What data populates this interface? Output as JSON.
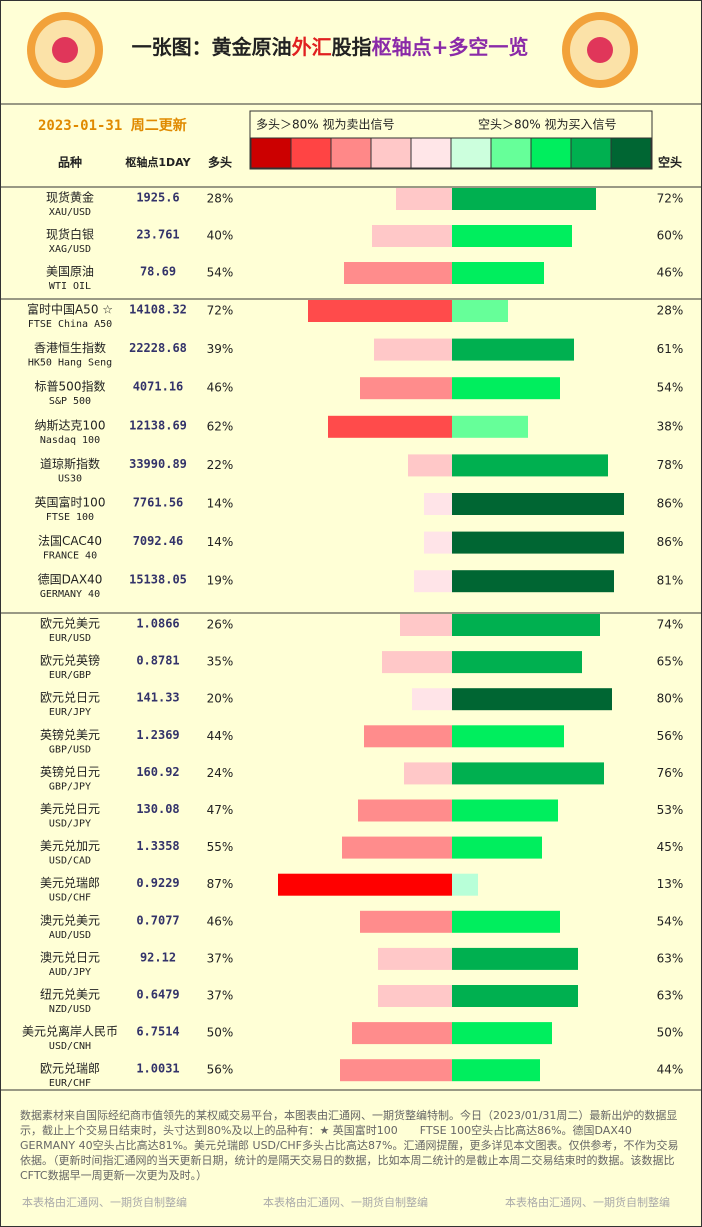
{
  "chart_data": {
    "type": "diverging-bar",
    "title_parts": [
      {
        "text": "一张图：黄金原油",
        "color": "#222222"
      },
      {
        "text": "外汇",
        "color": "#e02020"
      },
      {
        "text": "股指",
        "color": "#222222"
      },
      {
        "text": "枢轴点+多空一览",
        "color": "#8a2aa8"
      }
    ],
    "date": "2023-01-31 周二更新",
    "legend_left": "多头＞80% 视为卖出信号",
    "legend_right": "空头＞80% 视为买入信号",
    "legend_colors": [
      "#cc0000",
      "#ff4444",
      "#ff8888",
      "#ffc8c8",
      "#ffe6e8",
      "#ccffdd",
      "#66ff99",
      "#00ee5e",
      "#00b050",
      "#006633"
    ],
    "headers": {
      "name": "品种",
      "pivot": "枢轴点1DAY",
      "long": "多头",
      "short": "空头"
    },
    "groups": [
      {
        "rows": [
          {
            "name": "现货黄金",
            "code": "XAU/USD",
            "pivot": 1925.6,
            "long": {
              "value": 28,
              "label": "28%"
            },
            "short": {
              "value": 72,
              "label": "72%"
            },
            "long_color": "#ffc8c8",
            "short_color": "#00b050"
          },
          {
            "name": "现货白银",
            "code": "XAG/USD",
            "pivot": 23.761,
            "long": {
              "value": 40,
              "label": "40%"
            },
            "short": {
              "value": 60,
              "label": "60%"
            },
            "long_color": "#ffc8c8",
            "short_color": "#00ee5e"
          },
          {
            "name": "美国原油",
            "code": "WTI OIL",
            "pivot": 78.69,
            "long": {
              "value": 54,
              "label": "54%"
            },
            "short": {
              "value": 46,
              "label": "46%"
            },
            "long_color": "#ff8c8c",
            "short_color": "#00ee5e"
          }
        ]
      },
      {
        "rows": [
          {
            "name": "富时中国A50 ☆",
            "code": "FTSE China A50",
            "pivot": 14108.32,
            "long": {
              "value": 72,
              "label": "72%"
            },
            "short": {
              "value": 28,
              "label": "28%"
            },
            "long_color": "#ff4b4b",
            "short_color": "#66ff99"
          },
          {
            "name": "香港恒生指数",
            "code": "HK50 Hang Seng",
            "pivot": 22228.68,
            "long": {
              "value": 39,
              "label": "39%"
            },
            "short": {
              "value": 61,
              "label": "61%"
            },
            "long_color": "#ffc8c8",
            "short_color": "#00b050"
          },
          {
            "name": "标普500指数",
            "code": "S&P 500",
            "pivot": 4071.16,
            "long": {
              "value": 46,
              "label": "46%"
            },
            "short": {
              "value": 54,
              "label": "54%"
            },
            "long_color": "#ff8c8c",
            "short_color": "#00ee5e"
          },
          {
            "name": "纳斯达克100",
            "code": "Nasdaq 100",
            "pivot": 12138.69,
            "long": {
              "value": 62,
              "label": "62%"
            },
            "short": {
              "value": 38,
              "label": "38%"
            },
            "long_color": "#ff4b4b",
            "short_color": "#66ff99"
          },
          {
            "name": "道琼斯指数",
            "code": "US30",
            "pivot": 33990.89,
            "long": {
              "value": 22,
              "label": "22%"
            },
            "short": {
              "value": 78,
              "label": "78%"
            },
            "long_color": "#ffc8c8",
            "short_color": "#00b050"
          },
          {
            "name": "英国富时100",
            "code": "FTSE 100",
            "pivot": 7761.56,
            "long": {
              "value": 14,
              "label": "14%"
            },
            "short": {
              "value": 86,
              "label": "86%"
            },
            "long_color": "#ffe4e8",
            "short_color": "#006633"
          },
          {
            "name": "法国CAC40",
            "code": "FRANCE 40",
            "pivot": 7092.46,
            "long": {
              "value": 14,
              "label": "14%"
            },
            "short": {
              "value": 86,
              "label": "86%"
            },
            "long_color": "#ffe4e8",
            "short_color": "#006633"
          },
          {
            "name": "德国DAX40",
            "code": "GERMANY 40",
            "pivot": 15138.05,
            "long": {
              "value": 19,
              "label": "19%"
            },
            "short": {
              "value": 81,
              "label": "81%"
            },
            "long_color": "#ffe4e8",
            "short_color": "#006633"
          }
        ]
      },
      {
        "rows": [
          {
            "name": "欧元兑美元",
            "code": "EUR/USD",
            "pivot": 1.0866,
            "long": {
              "value": 26,
              "label": "26%"
            },
            "short": {
              "value": 74,
              "label": "74%"
            },
            "long_color": "#ffc8c8",
            "short_color": "#00b050"
          },
          {
            "name": "欧元兑英镑",
            "code": "EUR/GBP",
            "pivot": 0.8781,
            "long": {
              "value": 35,
              "label": "35%"
            },
            "short": {
              "value": 65,
              "label": "65%"
            },
            "long_color": "#ffc8c8",
            "short_color": "#00b050"
          },
          {
            "name": "欧元兑日元",
            "code": "EUR/JPY",
            "pivot": 141.33,
            "long": {
              "value": 20,
              "label": "20%"
            },
            "short": {
              "value": 80,
              "label": "80%"
            },
            "long_color": "#ffe4e8",
            "short_color": "#006633"
          },
          {
            "name": "英镑兑美元",
            "code": "GBP/USD",
            "pivot": 1.2369,
            "long": {
              "value": 44,
              "label": "44%"
            },
            "short": {
              "value": 56,
              "label": "56%"
            },
            "long_color": "#ff8c8c",
            "short_color": "#00ee5e"
          },
          {
            "name": "英镑兑日元",
            "code": "GBP/JPY",
            "pivot": 160.92,
            "long": {
              "value": 24,
              "label": "24%"
            },
            "short": {
              "value": 76,
              "label": "76%"
            },
            "long_color": "#ffc8c8",
            "short_color": "#00b050"
          },
          {
            "name": "美元兑日元",
            "code": "USD/JPY",
            "pivot": 130.08,
            "long": {
              "value": 47,
              "label": "47%"
            },
            "short": {
              "value": 53,
              "label": "53%"
            },
            "long_color": "#ff8c8c",
            "short_color": "#00ee5e"
          },
          {
            "name": "美元兑加元",
            "code": "USD/CAD",
            "pivot": 1.3358,
            "long": {
              "value": 55,
              "label": "55%"
            },
            "short": {
              "value": 45,
              "label": "45%"
            },
            "long_color": "#ff8c8c",
            "short_color": "#00ee5e"
          },
          {
            "name": "美元兑瑞郎",
            "code": "USD/CHF",
            "pivot": 0.9229,
            "long": {
              "value": 87,
              "label": "87%"
            },
            "short": {
              "value": 13,
              "label": "13%"
            },
            "long_color": "#ff0000",
            "short_color": "#b8ffd8"
          },
          {
            "name": "澳元兑美元",
            "code": "AUD/USD",
            "pivot": 0.7077,
            "long": {
              "value": 46,
              "label": "46%"
            },
            "short": {
              "value": 54,
              "label": "54%"
            },
            "long_color": "#ff8c8c",
            "short_color": "#00ee5e"
          },
          {
            "name": "澳元兑日元",
            "code": "AUD/JPY",
            "pivot": 92.12,
            "long": {
              "value": 37,
              "label": "37%"
            },
            "short": {
              "value": 63,
              "label": "63%"
            },
            "long_color": "#ffc8c8",
            "short_color": "#00b050"
          },
          {
            "name": "纽元兑美元",
            "code": "NZD/USD",
            "pivot": 0.6479,
            "long": {
              "value": 37,
              "label": "37%"
            },
            "short": {
              "value": 63,
              "label": "63%"
            },
            "long_color": "#ffc8c8",
            "short_color": "#00b050"
          },
          {
            "name": "美元兑离岸人民币",
            "code": "USD/CNH",
            "pivot": 6.7514,
            "long": {
              "value": 50,
              "label": "50%"
            },
            "short": {
              "value": 50,
              "label": "50%"
            },
            "long_color": "#ff8c8c",
            "short_color": "#00ee5e"
          },
          {
            "name": "欧元兑瑞郎",
            "code": "EUR/CHF",
            "pivot": 1.0031,
            "long": {
              "value": 56,
              "label": "56%"
            },
            "short": {
              "value": 44,
              "label": "44%"
            },
            "long_color": "#ff8c8c",
            "short_color": "#00ee5e"
          }
        ]
      }
    ],
    "note": "数据素材来自国际经纪商市值领先的某权威交易平台，本图表由汇通网、一期货整编特制。今日（2023/01/31周二）最新出炉的数据显示，截止上个交易日结束时，头寸达到80%及以上的品种有：★ 英国富时100　　FTSE 100空头占比高达86%。德国DAX40　　GERMANY 40空头占比高达81%。美元兑瑞郎 USD/CHF多头占比高达87%。汇通网提醒，更多详见本文图表。仅供参考，不作为交易依据。（更新时间指汇通网的当天更新日期，统计的是隔天交易日的数据，比如本周二统计的是截止本周二交易结束时的数据。该数据比CFTC数据早一周更新一次更为及时。）",
    "credits": [
      "本表格由汇通网、一期货自制整编",
      "本表格由汇通网、一期货自制整编",
      "本表格由汇通网、一期货自制整编"
    ]
  }
}
